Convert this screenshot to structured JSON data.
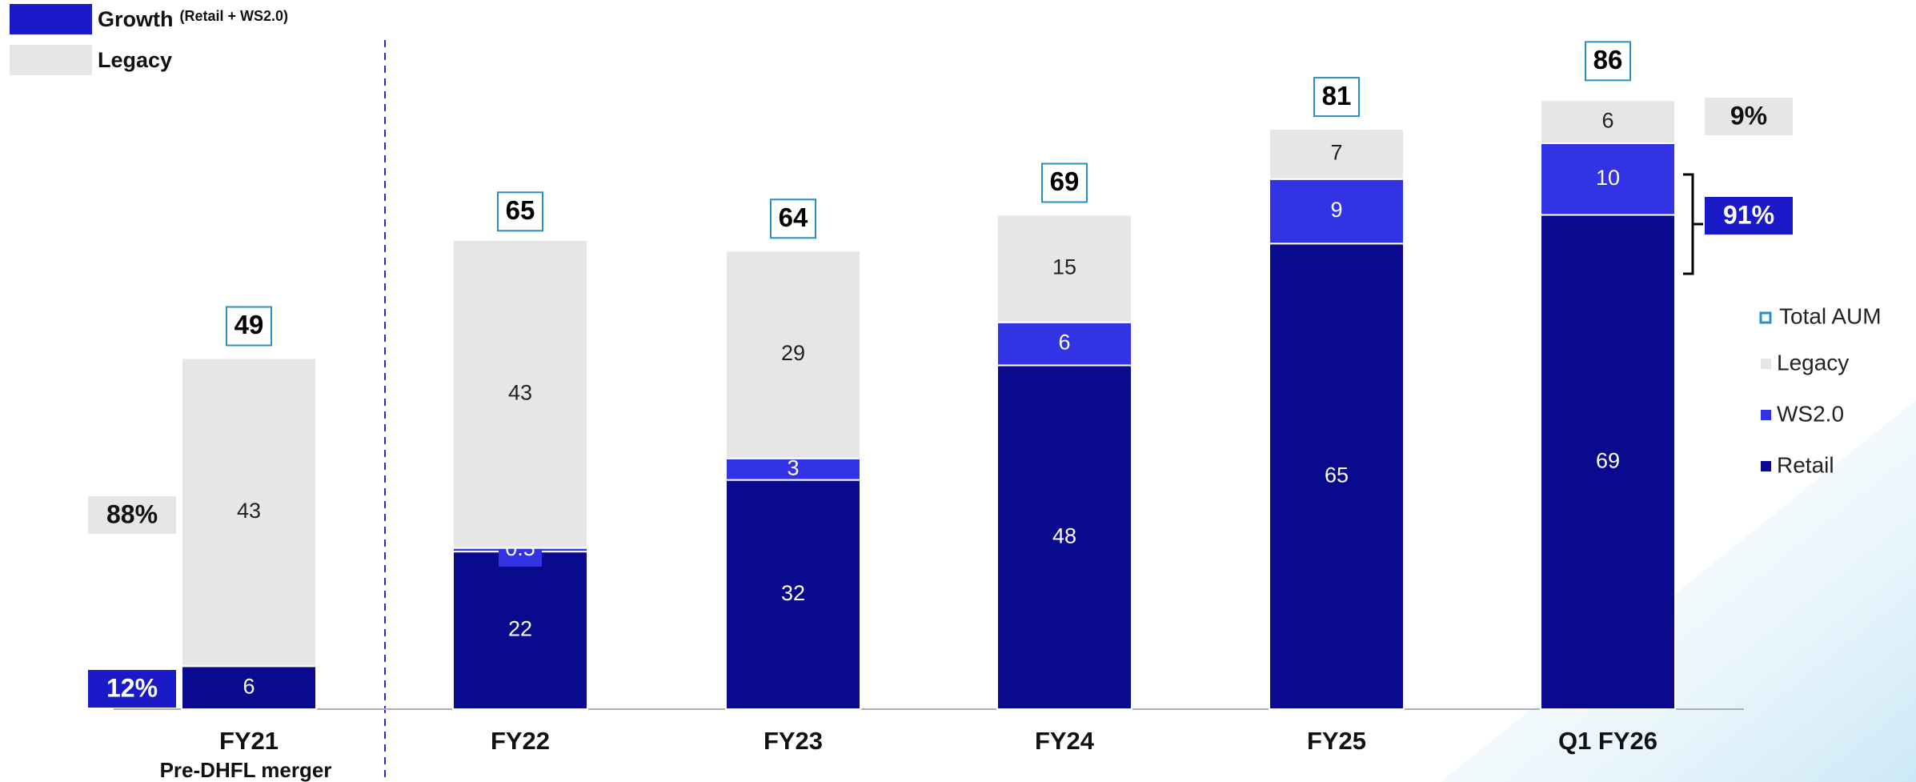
{
  "chart_data": {
    "type": "bar",
    "stacked": true,
    "categories": [
      "FY21",
      "FY22",
      "FY23",
      "FY24",
      "FY25",
      "Q1 FY26"
    ],
    "category_notes": [
      "Pre-DHFL merger",
      null,
      null,
      null,
      null,
      null
    ],
    "series": [
      {
        "name": "Retail",
        "color": "#0a0a8f",
        "values": [
          6,
          22,
          32,
          48,
          65,
          69
        ]
      },
      {
        "name": "WS2.0",
        "color": "#3333e6",
        "values": [
          null,
          0.5,
          3,
          6,
          9,
          10
        ]
      },
      {
        "name": "Legacy",
        "color": "#e6e6e6",
        "values": [
          43,
          43,
          29,
          15,
          7,
          6
        ]
      }
    ],
    "totals": {
      "name": "Total AUM",
      "color": "#2a8fc8",
      "values": [
        49,
        65,
        64,
        69,
        81,
        86
      ]
    },
    "ylim": [
      0,
      99
    ],
    "group_legend": [
      {
        "name": "Growth",
        "note": "(Retail + WS2.0)",
        "color": "#1a1ac8"
      },
      {
        "name": "Legacy",
        "color": "#e6e6e6"
      }
    ],
    "shares": [
      "88%",
      "12%",
      "9%",
      "91%"
    ]
  }
}
